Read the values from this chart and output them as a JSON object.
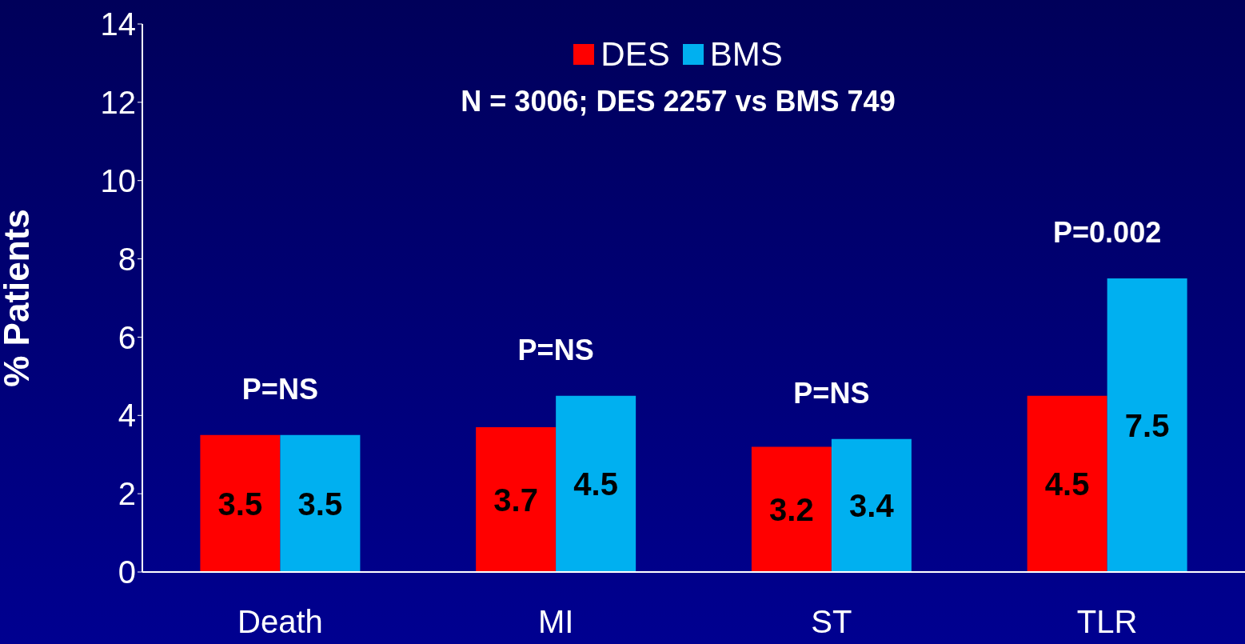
{
  "chart_data": {
    "type": "bar",
    "subtitle": "N = 3006; DES 2257 vs BMS 749",
    "ylabel": "% Patients",
    "categories": [
      "Death",
      "MI",
      "ST",
      "TLR"
    ],
    "series": [
      {
        "name": "DES",
        "color": "#ff0000",
        "values": [
          3.5,
          3.7,
          3.2,
          4.5
        ]
      },
      {
        "name": "BMS",
        "color": "#00b0f0",
        "values": [
          3.5,
          4.5,
          3.4,
          7.5
        ]
      }
    ],
    "ylim": [
      0,
      14
    ],
    "yticks": [
      0,
      2,
      4,
      6,
      8,
      10,
      12,
      14
    ],
    "data_labels": true,
    "grid": false,
    "legend": "top",
    "annotations": [
      "P=NS",
      "P=NS",
      "P=NS",
      "P=0.002"
    ]
  }
}
